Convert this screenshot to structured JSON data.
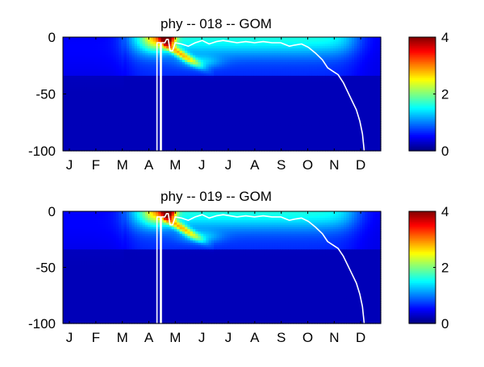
{
  "chart_data": [
    {
      "type": "heatmap",
      "title": "phy -- 018 -- GOM",
      "xlabel": "",
      "ylabel": "",
      "month_ticks": [
        "J",
        "F",
        "M",
        "A",
        "M",
        "J",
        "J",
        "A",
        "S",
        "O",
        "N",
        "D"
      ],
      "x_range_days": [
        0,
        365
      ],
      "ylim": [
        -100,
        0
      ],
      "y_ticks": [
        0,
        -50,
        -100
      ],
      "colorbar": {
        "range": [
          0,
          4
        ],
        "ticks": [
          0,
          2,
          4
        ],
        "colormap": "jet"
      },
      "contour_color": "#ffffff",
      "features": {
        "surface_max_value": 4.0,
        "surface_max_day": 120,
        "layer_depth_m": 33,
        "bloom_start_day": 85,
        "bloom_end_day": 335,
        "subsurface_max_depth_m": 18,
        "subsurface_max_day": 148
      },
      "boundary_line": [
        [
          108,
          -100
        ],
        [
          108,
          -5
        ],
        [
          112,
          -5
        ],
        [
          112,
          -100
        ],
        [
          113,
          -100
        ],
        [
          113,
          -5
        ],
        [
          117,
          -5
        ],
        [
          119,
          -2
        ],
        [
          121,
          -2
        ],
        [
          123,
          -12
        ],
        [
          126,
          -12
        ],
        [
          129,
          -5
        ],
        [
          136,
          -6
        ],
        [
          144,
          -8
        ],
        [
          152,
          -5
        ],
        [
          160,
          -3
        ],
        [
          168,
          -6
        ],
        [
          176,
          -4
        ],
        [
          184,
          -3
        ],
        [
          192,
          -4
        ],
        [
          200,
          -5
        ],
        [
          210,
          -4
        ],
        [
          220,
          -5
        ],
        [
          230,
          -4
        ],
        [
          240,
          -5
        ],
        [
          250,
          -5
        ],
        [
          260,
          -8
        ],
        [
          266,
          -7
        ],
        [
          274,
          -6
        ],
        [
          282,
          -9
        ],
        [
          290,
          -14
        ],
        [
          298,
          -20
        ],
        [
          304,
          -27
        ],
        [
          310,
          -30
        ],
        [
          316,
          -33
        ],
        [
          322,
          -40
        ],
        [
          327,
          -48
        ],
        [
          332,
          -56
        ],
        [
          337,
          -64
        ],
        [
          341,
          -74
        ],
        [
          344,
          -85
        ],
        [
          346,
          -100
        ]
      ]
    },
    {
      "type": "heatmap",
      "title": "phy -- 019 -- GOM",
      "xlabel": "",
      "ylabel": "",
      "month_ticks": [
        "J",
        "F",
        "M",
        "A",
        "M",
        "J",
        "J",
        "A",
        "S",
        "O",
        "N",
        "D"
      ],
      "x_range_days": [
        0,
        365
      ],
      "ylim": [
        -100,
        0
      ],
      "y_ticks": [
        0,
        -50,
        -100
      ],
      "colorbar": {
        "range": [
          0,
          4
        ],
        "ticks": [
          0,
          2,
          4
        ],
        "colormap": "jet"
      },
      "contour_color": "#ffffff",
      "features": {
        "surface_max_value": 3.7,
        "surface_max_day": 121,
        "layer_depth_m": 33,
        "bloom_start_day": 85,
        "bloom_end_day": 335,
        "subsurface_max_depth_m": 19,
        "subsurface_max_day": 149
      },
      "boundary_line": [
        [
          108,
          -100
        ],
        [
          108,
          -5
        ],
        [
          112,
          -5
        ],
        [
          112,
          -100
        ],
        [
          113,
          -100
        ],
        [
          113,
          -5
        ],
        [
          117,
          -5
        ],
        [
          119,
          -2
        ],
        [
          121,
          -2
        ],
        [
          123,
          -12
        ],
        [
          126,
          -12
        ],
        [
          129,
          -5
        ],
        [
          136,
          -6
        ],
        [
          144,
          -8
        ],
        [
          152,
          -5
        ],
        [
          160,
          -3
        ],
        [
          168,
          -6
        ],
        [
          176,
          -4
        ],
        [
          184,
          -3
        ],
        [
          192,
          -4
        ],
        [
          200,
          -5
        ],
        [
          210,
          -4
        ],
        [
          220,
          -5
        ],
        [
          230,
          -4
        ],
        [
          240,
          -5
        ],
        [
          250,
          -5
        ],
        [
          260,
          -8
        ],
        [
          266,
          -7
        ],
        [
          274,
          -6
        ],
        [
          282,
          -9
        ],
        [
          290,
          -14
        ],
        [
          298,
          -20
        ],
        [
          304,
          -27
        ],
        [
          310,
          -30
        ],
        [
          316,
          -33
        ],
        [
          322,
          -40
        ],
        [
          327,
          -48
        ],
        [
          332,
          -56
        ],
        [
          337,
          -64
        ],
        [
          341,
          -74
        ],
        [
          344,
          -85
        ],
        [
          346,
          -100
        ]
      ]
    }
  ]
}
